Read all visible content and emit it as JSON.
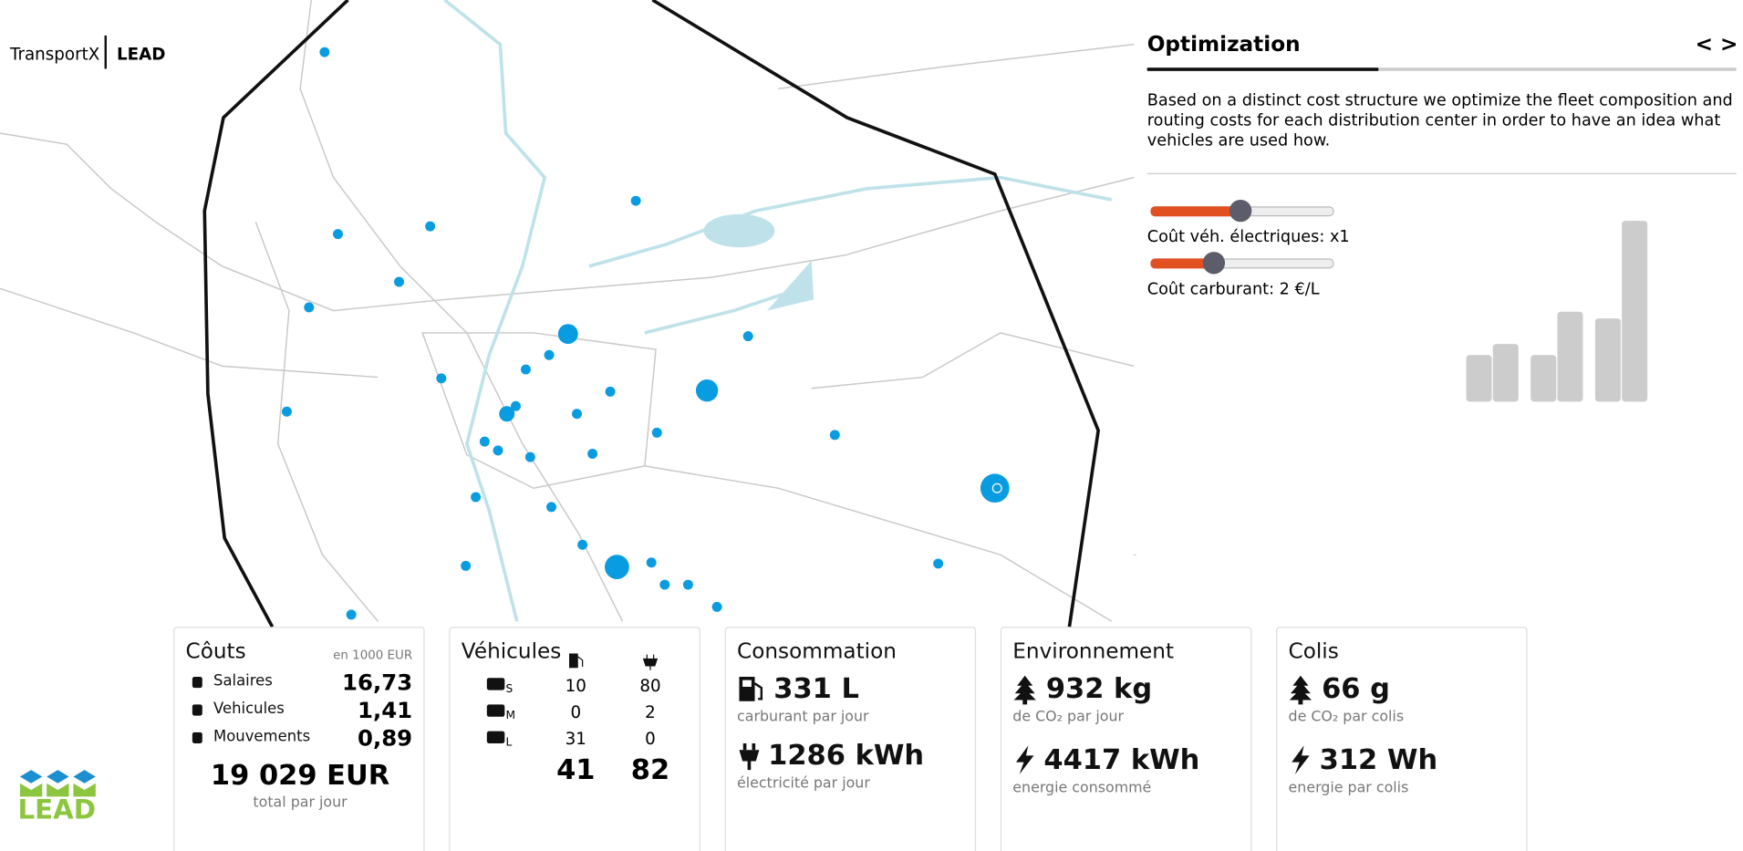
{
  "header": {
    "brand": "TransportX",
    "brand_sub": "LEAD"
  },
  "panel": {
    "title": "Optimization",
    "nav": "< >",
    "description": "Based on a distinct cost structure we optimize the fleet composition and routing costs for each distribution center in order to have an idea what vehicles are used how.",
    "slider_1_label": "Coût véh. électriques: x1",
    "slider_2_label": "Coût carburant: 2 €/L"
  },
  "fleet_chart": {
    "values": [
      42,
      52,
      42,
      81,
      75,
      163
    ]
  },
  "cards": {
    "costs": {
      "title": "Côuts",
      "unit": "en 1000 EUR",
      "rows": [
        [
          "Salaires",
          "16,73"
        ],
        [
          "Vehicules",
          "1,41"
        ],
        [
          "Mouvements",
          "0,89"
        ]
      ],
      "total": "19 029 EUR",
      "total_label": "total par jour"
    },
    "vehicles": {
      "title": "Véhicules",
      "rows": [
        [
          "S",
          "10",
          "80"
        ],
        [
          "M",
          "0",
          "2"
        ],
        [
          "L",
          "31",
          "0"
        ]
      ],
      "totals": [
        "41",
        "82"
      ]
    },
    "consumption": {
      "title": "Consommation",
      "fuel": "331 L",
      "fuel_label": "carburant par jour",
      "electricity": "1286 kWh",
      "electricity_label": "électricité par jour"
    },
    "environment": {
      "title": "Environnement",
      "co2": "932 kg",
      "co2_label": "de CO₂ par jour",
      "energy": "4417 kWh",
      "energy_label": "energie consommé"
    },
    "parcels": {
      "title": "Colis",
      "co2": "66 g",
      "co2_label": "de CO₂ par colis",
      "energy": "312 Wh",
      "energy_label": "energie par colis"
    }
  },
  "logo": {
    "text": "LEAD"
  }
}
